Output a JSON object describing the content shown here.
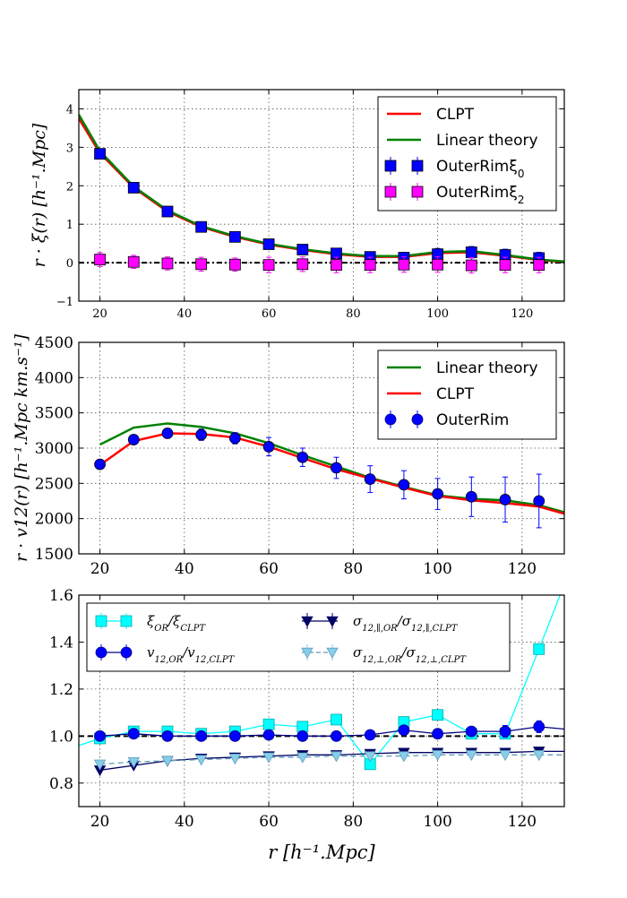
{
  "chart_data": [
    {
      "type": "line",
      "title": "",
      "ylabel": "r · ξ(r) [h⁻¹.Mpc]",
      "xlim": [
        15,
        130
      ],
      "ylim": [
        -1,
        4.5
      ],
      "xticks": [
        20,
        40,
        60,
        80,
        100,
        120
      ],
      "yticks": [
        -1,
        0,
        1,
        2,
        3,
        4
      ],
      "grid": true,
      "legend_position": "top-right",
      "x_model": [
        15,
        20,
        28,
        36,
        44,
        52,
        60,
        68,
        76,
        84,
        92,
        100,
        108,
        116,
        124,
        130
      ],
      "series": [
        {
          "name": "CLPT",
          "kind": "line",
          "color": "#ff0000",
          "values": [
            3.75,
            2.85,
            1.95,
            1.33,
            0.93,
            0.67,
            0.47,
            0.33,
            0.22,
            0.15,
            0.15,
            0.25,
            0.27,
            0.18,
            0.07,
            0.02
          ]
        },
        {
          "name": "Linear theory",
          "kind": "line",
          "color": "#008000",
          "values": [
            3.85,
            2.9,
            1.98,
            1.36,
            0.95,
            0.69,
            0.49,
            0.35,
            0.24,
            0.17,
            0.17,
            0.28,
            0.3,
            0.2,
            0.08,
            0.03
          ]
        },
        {
          "name": "OuterRimξ0",
          "kind": "points",
          "marker": "square",
          "color": "#0000ff",
          "x": [
            20,
            28,
            36,
            44,
            52,
            60,
            68,
            76,
            84,
            92,
            100,
            108,
            116,
            124
          ],
          "values": [
            2.83,
            1.95,
            1.33,
            0.93,
            0.67,
            0.48,
            0.34,
            0.24,
            0.15,
            0.13,
            0.22,
            0.27,
            0.2,
            0.12
          ],
          "err": [
            0.12,
            0.09,
            0.08,
            0.08,
            0.08,
            0.1,
            0.1,
            0.1,
            0.12,
            0.14,
            0.15,
            0.15,
            0.15,
            0.15
          ]
        },
        {
          "name": "OuterRimξ2",
          "kind": "points",
          "marker": "square",
          "color": "#ff00ff",
          "x": [
            20,
            28,
            36,
            44,
            52,
            60,
            68,
            76,
            84,
            92,
            100,
            108,
            116,
            124
          ],
          "values": [
            0.08,
            0.02,
            -0.02,
            -0.04,
            -0.05,
            -0.06,
            -0.04,
            -0.06,
            -0.06,
            -0.05,
            -0.05,
            -0.07,
            -0.06,
            -0.06
          ],
          "err": [
            0.18,
            0.17,
            0.17,
            0.18,
            0.17,
            0.2,
            0.19,
            0.2,
            0.2,
            0.2,
            0.2,
            0.2,
            0.2,
            0.2
          ]
        }
      ],
      "reference_line": {
        "y": 0,
        "style": "dashdot"
      },
      "legend": [
        {
          "label": "CLPT",
          "sub": "",
          "symbol": "line",
          "color": "#ff0000"
        },
        {
          "label": "Linear theory",
          "sub": "",
          "symbol": "line",
          "color": "#008000"
        },
        {
          "label": "OuterRimξ",
          "sub": "0",
          "symbol": "square",
          "color": "#0000ff"
        },
        {
          "label": "OuterRimξ",
          "sub": "2",
          "symbol": "square",
          "color": "#ff00ff"
        }
      ]
    },
    {
      "type": "line",
      "title": "",
      "ylabel": "r · v12(r) [h⁻¹.Mpc km.s⁻¹]",
      "xlim": [
        15,
        130
      ],
      "ylim": [
        1500,
        4500
      ],
      "xticks": [
        20,
        40,
        60,
        80,
        100,
        120
      ],
      "yticks": [
        1500,
        2000,
        2500,
        3000,
        3500,
        4000,
        4500
      ],
      "grid": true,
      "legend_position": "top-right",
      "x_model": [
        20,
        28,
        36,
        44,
        52,
        60,
        68,
        76,
        84,
        92,
        100,
        108,
        116,
        124,
        130
      ],
      "series": [
        {
          "name": "Linear theory",
          "kind": "line",
          "color": "#008000",
          "values": [
            3050,
            3290,
            3350,
            3300,
            3210,
            3070,
            2900,
            2740,
            2580,
            2450,
            2330,
            2280,
            2260,
            2190,
            2090
          ]
        },
        {
          "name": "CLPT",
          "kind": "line",
          "color": "#ff0000",
          "values": [
            2760,
            3100,
            3210,
            3200,
            3150,
            3020,
            2860,
            2700,
            2570,
            2440,
            2320,
            2260,
            2220,
            2170,
            2070
          ]
        },
        {
          "name": "OuterRim",
          "kind": "points",
          "marker": "circle",
          "color": "#0000ff",
          "x": [
            20,
            28,
            36,
            44,
            52,
            60,
            68,
            76,
            84,
            92,
            100,
            108,
            116,
            124
          ],
          "values": [
            2770,
            3120,
            3210,
            3190,
            3140,
            3020,
            2870,
            2720,
            2560,
            2480,
            2350,
            2310,
            2270,
            2250
          ],
          "err": [
            40,
            60,
            70,
            80,
            80,
            130,
            130,
            150,
            190,
            200,
            220,
            280,
            320,
            380
          ]
        }
      ],
      "legend": [
        {
          "label": "Linear theory",
          "symbol": "line",
          "color": "#008000"
        },
        {
          "label": "CLPT",
          "symbol": "line",
          "color": "#ff0000"
        },
        {
          "label": "OuterRim",
          "symbol": "circle",
          "color": "#0000ff"
        }
      ]
    },
    {
      "type": "line",
      "title": "",
      "xlabel": "r [h⁻¹.Mpc]",
      "ylabel": "",
      "xlim": [
        15,
        130
      ],
      "ylim": [
        0.7,
        1.6
      ],
      "xticks": [
        20,
        40,
        60,
        80,
        100,
        120
      ],
      "yticks": [
        0.8,
        1.0,
        1.2,
        1.4,
        1.6
      ],
      "grid": true,
      "legend_position": "top",
      "reference_line": {
        "y": 1.0,
        "style": "dashed"
      },
      "series": [
        {
          "name": "ξOR/ξCLPT",
          "kind": "line+points",
          "marker": "square",
          "color": "#00ffff",
          "edge": "#00aaaa",
          "x": [
            15,
            20,
            28,
            36,
            44,
            52,
            60,
            68,
            76,
            84,
            92,
            100,
            108,
            116,
            124,
            129
          ],
          "values": [
            0.96,
            0.99,
            1.02,
            1.02,
            1.01,
            1.02,
            1.05,
            1.04,
            1.07,
            0.88,
            1.06,
            1.09,
            1.01,
            1.01,
            1.37,
            1.6
          ],
          "markers_from": 1,
          "markers_to": 14
        },
        {
          "name": "v12,OR/v12,CLPT",
          "kind": "line+points",
          "marker": "circle",
          "color": "#0000ff",
          "edge": "#000080",
          "x": [
            20,
            28,
            36,
            44,
            52,
            60,
            68,
            76,
            84,
            92,
            100,
            108,
            116,
            124,
            130
          ],
          "values": [
            1.0,
            1.01,
            1.0,
            1.0,
            1.0,
            1.005,
            1.0,
            1.0,
            1.005,
            1.025,
            1.01,
            1.02,
            1.02,
            1.04,
            1.03
          ],
          "err": [
            0.015,
            0.02,
            0.018,
            0.018,
            0.015,
            0.015,
            0.015,
            0.015,
            0.018,
            0.02,
            0.02,
            0.02,
            0.025,
            0.025,
            0.0
          ],
          "markers_from": 0,
          "markers_to": 13
        },
        {
          "name": "σ12,∥,OR/σ12,∥,CLPT",
          "kind": "line+points",
          "marker": "triangle-down",
          "color": "#000066",
          "edge": "#000066",
          "x": [
            20,
            28,
            36,
            44,
            52,
            60,
            68,
            76,
            84,
            92,
            100,
            108,
            116,
            124,
            130
          ],
          "values": [
            0.855,
            0.875,
            0.895,
            0.905,
            0.91,
            0.915,
            0.92,
            0.92,
            0.925,
            0.93,
            0.93,
            0.93,
            0.93,
            0.935,
            0.935
          ],
          "markers_from": 0,
          "markers_to": 13
        },
        {
          "name": "σ12,⊥,OR/σ12,⊥,CLPT",
          "kind": "line+points",
          "marker": "triangle-down",
          "color": "#87ceeb",
          "edge": "#5f9eb8",
          "dashed": true,
          "x": [
            20,
            28,
            36,
            44,
            52,
            60,
            68,
            76,
            84,
            92,
            100,
            108,
            116,
            124,
            130
          ],
          "values": [
            0.88,
            0.89,
            0.895,
            0.9,
            0.905,
            0.91,
            0.91,
            0.915,
            0.915,
            0.915,
            0.92,
            0.92,
            0.92,
            0.92,
            0.92
          ],
          "markers_from": 0,
          "markers_to": 13
        }
      ],
      "legend": [
        {
          "label": "ξ",
          "sub": "OR",
          "label2": "/ξ",
          "sub2": "CLPT",
          "symbol": "square",
          "color": "#00ffff",
          "edge": "#00aaaa"
        },
        {
          "label": "v",
          "sub": "12,OR",
          "label2": "/v",
          "sub2": "12,CLPT",
          "symbol": "circle",
          "color": "#0000ff",
          "edge": "#000080"
        },
        {
          "label": "σ",
          "sub": "12,∥,OR",
          "label2": "/σ",
          "sub2": "12,∥,CLPT",
          "symbol": "triangle-down",
          "color": "#000066",
          "edge": "#000066"
        },
        {
          "label": "σ",
          "sub": "12,⊥,OR",
          "label2": "/σ",
          "sub2": "12,⊥,CLPT",
          "symbol": "triangle-down",
          "color": "#87ceeb",
          "edge": "#5f9eb8"
        }
      ]
    }
  ]
}
